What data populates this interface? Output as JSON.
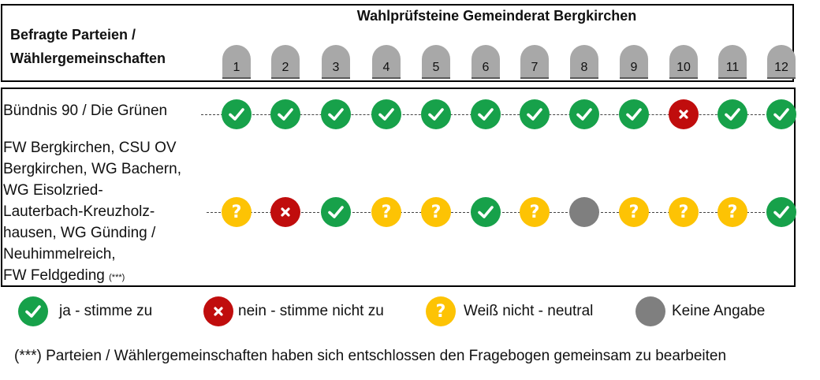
{
  "header": {
    "title": "Wahlprüfsteine Gemeinderat Bergkirchen",
    "parties_heading_line1": "Befragte Parteien /",
    "parties_heading_line2": "Wählergemeinschaften",
    "questions": [
      "1",
      "2",
      "3",
      "4",
      "5",
      "6",
      "7",
      "8",
      "9",
      "10",
      "11",
      "12"
    ]
  },
  "rows": [
    {
      "label_lines": [
        "Bündnis 90 / Die Grünen"
      ],
      "answers": [
        "yes",
        "yes",
        "yes",
        "yes",
        "yes",
        "yes",
        "yes",
        "yes",
        "yes",
        "no",
        "yes",
        "yes"
      ]
    },
    {
      "label_lines": [
        "FW Bergkirchen, CSU OV",
        "Bergkirchen, WG Bachern,",
        "WG Eisolzried-",
        "Lauterbach-Kreuzholz-",
        "hausen, WG Günding /",
        "Neuhimmelreich,",
        "FW Feldgeding"
      ],
      "label_note": "(***)",
      "answers": [
        "neutral",
        "no",
        "yes",
        "neutral",
        "neutral",
        "yes",
        "neutral",
        "none",
        "neutral",
        "neutral",
        "neutral",
        "yes"
      ]
    }
  ],
  "legend": [
    {
      "type": "yes",
      "label": "ja - stimme zu"
    },
    {
      "type": "no",
      "label": "nein - stimme nicht zu"
    },
    {
      "type": "neutral",
      "label": "Weiß nicht - neutral"
    },
    {
      "type": "none",
      "label": "Keine Angabe"
    }
  ],
  "icons": {
    "yes": "check-icon",
    "no": "cross-icon",
    "neutral": "question-icon",
    "none": "no-answer-icon"
  },
  "colors": {
    "yes": "#17a14a",
    "no": "#c00d0d",
    "neutral": "#fdc304",
    "none": "#7f7f7f"
  },
  "footnote": "(***) Parteien / Wählergemeinschaften haben sich entschlossen den Fragebogen gemeinsam zu bearbeiten"
}
